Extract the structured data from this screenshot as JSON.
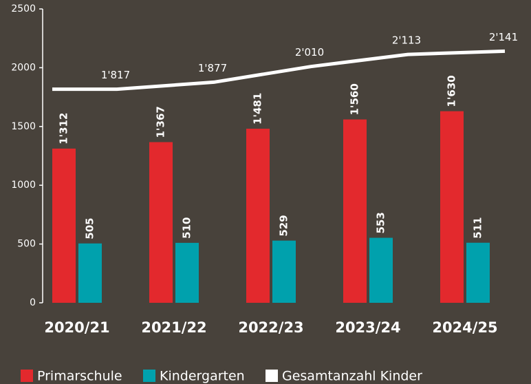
{
  "chart_data": {
    "type": "bar",
    "categories": [
      "2020/21",
      "2021/22",
      "2022/23",
      "2023/24",
      "2024/25"
    ],
    "series": [
      {
        "name": "Primarschule",
        "color": "#e3292d",
        "values": [
          1312,
          1367,
          1481,
          1560,
          1630
        ],
        "value_labels": [
          "1'312",
          "1'367",
          "1'481",
          "1'560",
          "1'630"
        ]
      },
      {
        "name": "Kindergarten",
        "color": "#00a1ad",
        "values": [
          505,
          510,
          529,
          553,
          511
        ],
        "value_labels": [
          "505",
          "510",
          "529",
          "553",
          "511"
        ]
      },
      {
        "name": "Gesamtanzahl Kinder",
        "type": "line",
        "color": "#ffffff",
        "values": [
          1817,
          1877,
          2010,
          2113,
          2141
        ],
        "value_labels": [
          "1'817",
          "1'877",
          "2'010",
          "2'113",
          "2'141"
        ]
      }
    ],
    "ylim": [
      0,
      2500
    ],
    "yticks": [
      0,
      500,
      1000,
      1500,
      2000,
      2500
    ],
    "grid": false
  }
}
